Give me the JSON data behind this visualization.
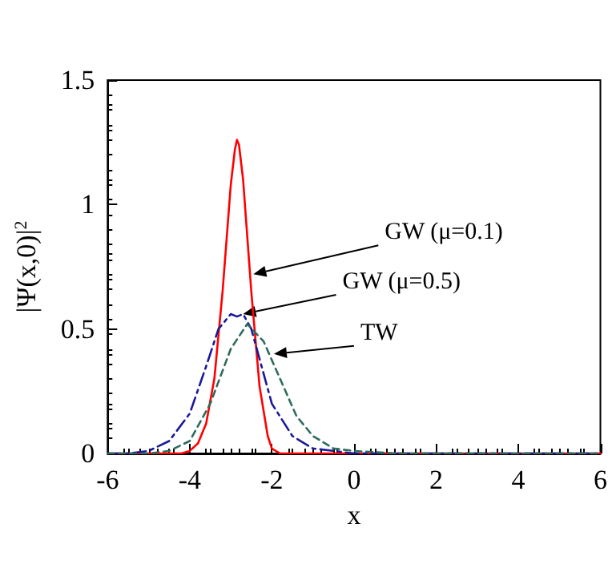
{
  "chart_data": {
    "type": "line",
    "xlabel": "x",
    "ylabel": "|Ψ(x,0)|$^{2}$",
    "xlim": [
      -6,
      6
    ],
    "xticks": [
      -6,
      -4,
      -2,
      0,
      2,
      4,
      6
    ],
    "ylim": [
      0,
      1.5
    ],
    "yticks": [
      0,
      0.5,
      1,
      1.5
    ],
    "grid": false,
    "marker": "none",
    "series": [
      {
        "color": "#ff0000",
        "line_style": "solid",
        "x": [
          -6,
          -5,
          -4.2,
          -4,
          -3.8,
          -3.6,
          -3.4,
          -3.2,
          -3.0,
          -2.9,
          -2.85,
          -2.8,
          -2.7,
          -2.5,
          -2.3,
          -2.1,
          -2,
          -1.8,
          -1,
          0,
          2,
          4,
          6
        ],
        "values": [
          0,
          0,
          0,
          0.01,
          0.04,
          0.12,
          0.3,
          0.65,
          1.08,
          1.22,
          1.26,
          1.24,
          1.1,
          0.65,
          0.27,
          0.07,
          0.02,
          0,
          0,
          0,
          0,
          0,
          0
        ]
      },
      {
        "color": "#1a1a99",
        "line_style": "dashdot",
        "x": [
          -6,
          -5.5,
          -5,
          -4.5,
          -4,
          -3.6,
          -3.3,
          -3.0,
          -2.85,
          -2.7,
          -2.5,
          -2.3,
          -2,
          -1.5,
          -1,
          -0.5,
          0,
          2,
          4,
          6
        ],
        "values": [
          0,
          0,
          0.01,
          0.05,
          0.16,
          0.35,
          0.5,
          0.56,
          0.55,
          0.56,
          0.5,
          0.38,
          0.2,
          0.07,
          0.02,
          0.01,
          0,
          0,
          0,
          0
        ]
      },
      {
        "color": "#2e6b5e",
        "line_style": "dashed",
        "x": [
          -6,
          -5,
          -4.5,
          -4,
          -3.5,
          -3,
          -2.6,
          -2.2,
          -1.8,
          -1.4,
          -1,
          -0.5,
          0,
          1,
          2,
          4,
          6
        ],
        "values": [
          0,
          0,
          0.01,
          0.05,
          0.2,
          0.42,
          0.52,
          0.45,
          0.3,
          0.15,
          0.07,
          0.02,
          0.01,
          0,
          0,
          0,
          0
        ]
      }
    ],
    "annotations": [
      {
        "text": "GW (μ=0.1)",
        "x": -2.45,
        "y": 0.72
      },
      {
        "text": "GW (μ=0.5)",
        "x": -2.7,
        "y": 0.56
      },
      {
        "text": "TW",
        "x": -1.95,
        "y": 0.4
      }
    ]
  }
}
